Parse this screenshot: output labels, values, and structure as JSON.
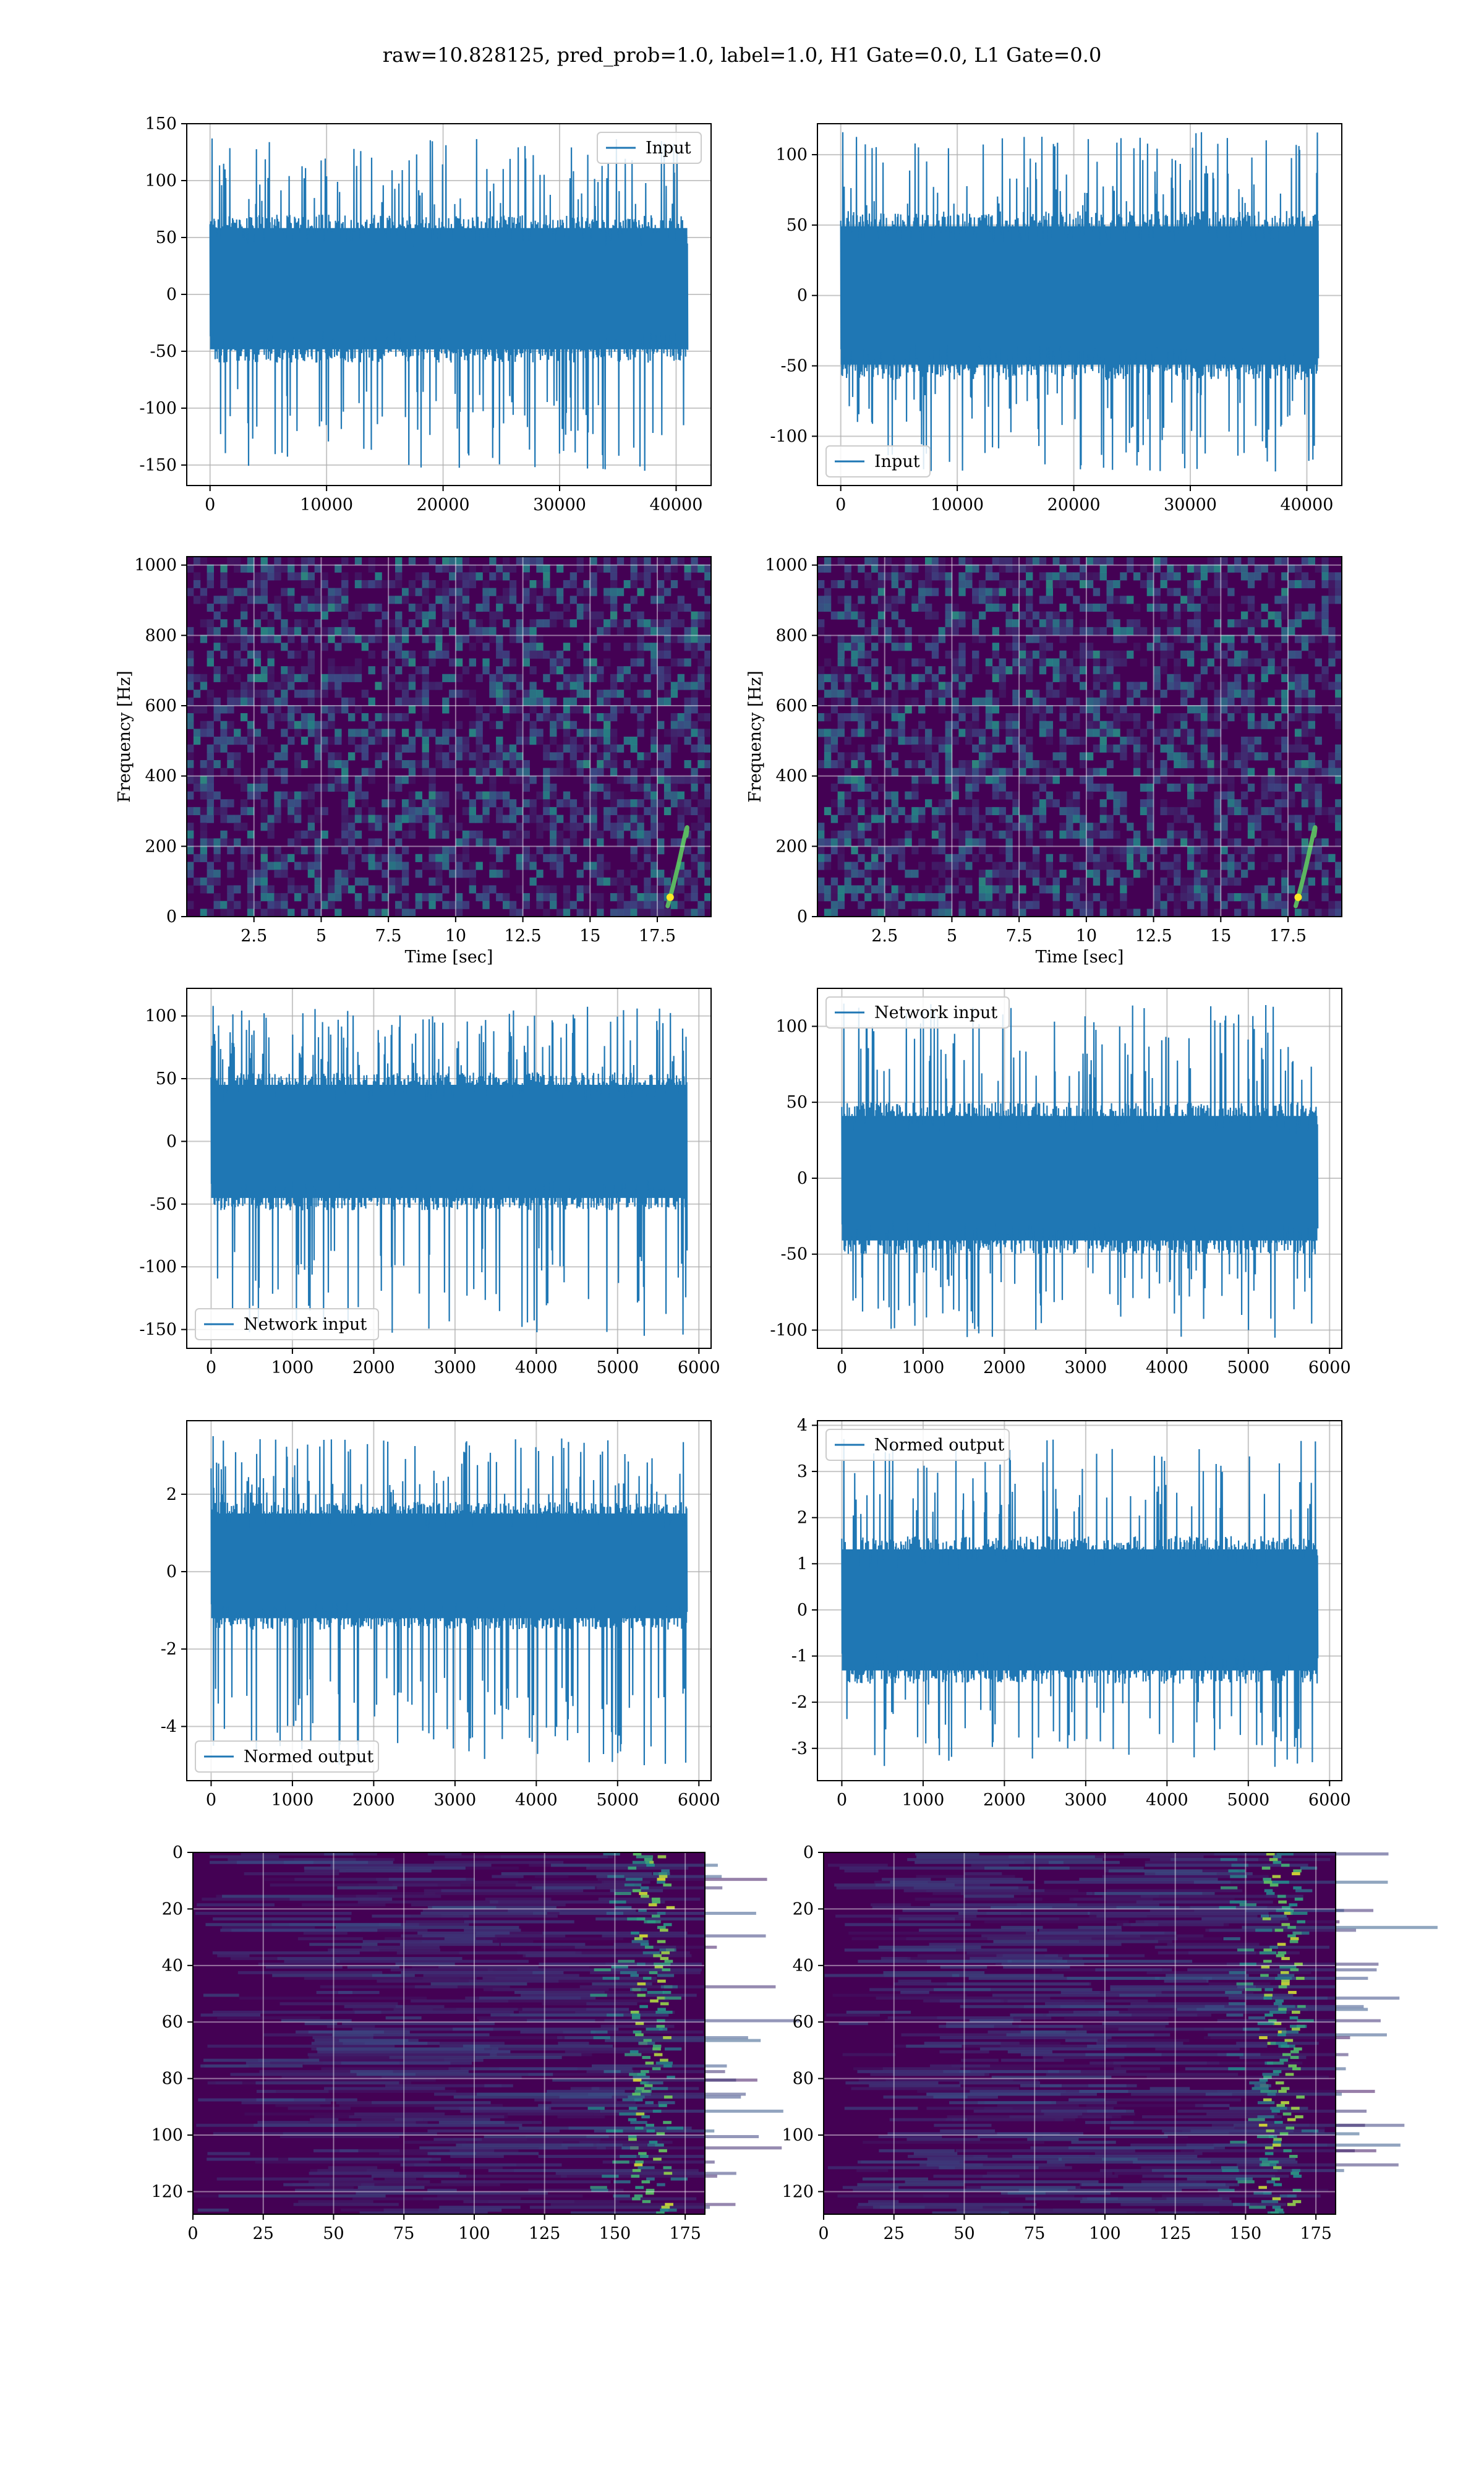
{
  "figure": {
    "title": "raw=10.828125, pred_prob=1.0, label=1.0, H1 Gate=0.0, L1 Gate=0.0"
  },
  "colors": {
    "line": "#1f77b4",
    "grid": "#b0b0b0",
    "viridis_low": "#440154",
    "viridis_mid": "#21918c",
    "viridis_high": "#fde725"
  },
  "chart_data": [
    {
      "id": "ts-left-input",
      "type": "line",
      "series": [
        {
          "name": "Input"
        }
      ],
      "legend": "upper right",
      "grid": true,
      "xlim": [
        -2000,
        43000
      ],
      "ylim": [
        -168,
        150
      ],
      "xticks": [
        0,
        10000,
        20000,
        30000,
        40000
      ],
      "yticks": [
        -150,
        -100,
        -50,
        0,
        50,
        100,
        150
      ],
      "n_points": 40960,
      "envelope": [
        -60,
        70
      ],
      "extremes": {
        "max": 137,
        "min": -155
      }
    },
    {
      "id": "ts-right-input",
      "type": "line",
      "series": [
        {
          "name": "Input"
        }
      ],
      "legend": "lower left",
      "grid": true,
      "xlim": [
        -2000,
        43000
      ],
      "ylim": [
        -135,
        122
      ],
      "xticks": [
        0,
        10000,
        20000,
        30000,
        40000
      ],
      "yticks": [
        -100,
        -50,
        0,
        50,
        100
      ],
      "n_points": 40960,
      "envelope": [
        -60,
        60
      ],
      "extremes": {
        "max": 116,
        "min": -125
      }
    },
    {
      "id": "spec-left",
      "type": "heatmap",
      "xlabel": "Time [sec]",
      "ylabel": "Frequency [Hz]",
      "xlim": [
        0,
        19.5
      ],
      "ylim": [
        0,
        1024
      ],
      "xticks": [
        2.5,
        5.0,
        7.5,
        10.0,
        12.5,
        15.0,
        17.5
      ],
      "yticks": [
        0,
        200,
        400,
        600,
        800,
        1000
      ],
      "grid": true,
      "colormap": "viridis",
      "chirp_time": 18.3
    },
    {
      "id": "spec-right",
      "type": "heatmap",
      "xlabel": "Time [sec]",
      "ylabel": "Frequency [Hz]",
      "xlim": [
        0,
        19.5
      ],
      "ylim": [
        0,
        1024
      ],
      "xticks": [
        2.5,
        5.0,
        7.5,
        10.0,
        12.5,
        15.0,
        17.5
      ],
      "yticks": [
        0,
        200,
        400,
        600,
        800,
        1000
      ],
      "grid": true,
      "colormap": "viridis",
      "chirp_time": 18.2
    },
    {
      "id": "ts-left-network",
      "type": "line",
      "series": [
        {
          "name": "Network input"
        }
      ],
      "legend": "lower left",
      "grid": true,
      "xlim": [
        -300,
        6150
      ],
      "ylim": [
        -165,
        122
      ],
      "xticks": [
        0,
        1000,
        2000,
        3000,
        4000,
        5000,
        6000
      ],
      "yticks": [
        -150,
        -100,
        -50,
        0,
        50,
        100
      ],
      "n_points": 5850,
      "envelope": [
        -55,
        55
      ],
      "extremes": {
        "max": 108,
        "min": -155
      }
    },
    {
      "id": "ts-right-network",
      "type": "line",
      "series": [
        {
          "name": "Network input"
        }
      ],
      "legend": "upper left",
      "grid": true,
      "xlim": [
        -300,
        6150
      ],
      "ylim": [
        -112,
        125
      ],
      "xticks": [
        0,
        1000,
        2000,
        3000,
        4000,
        5000,
        6000
      ],
      "yticks": [
        -100,
        -50,
        0,
        50,
        100
      ],
      "n_points": 5850,
      "envelope": [
        -50,
        50
      ],
      "extremes": {
        "max": 115,
        "min": -105
      }
    },
    {
      "id": "ts-left-normed",
      "type": "line",
      "series": [
        {
          "name": "Normed output"
        }
      ],
      "legend": "lower left",
      "grid": true,
      "xlim": [
        -300,
        6150
      ],
      "ylim": [
        -5.4,
        3.9
      ],
      "xticks": [
        0,
        1000,
        2000,
        3000,
        4000,
        5000,
        6000
      ],
      "yticks": [
        -4,
        -2,
        0,
        2
      ],
      "n_points": 5850,
      "envelope": [
        -1.5,
        1.8
      ],
      "extremes": {
        "max": 3.5,
        "min": -5.0
      }
    },
    {
      "id": "ts-right-normed",
      "type": "line",
      "series": [
        {
          "name": "Normed output"
        }
      ],
      "legend": "upper left",
      "grid": true,
      "xlim": [
        -300,
        6150
      ],
      "ylim": [
        -3.7,
        4.1
      ],
      "xticks": [
        0,
        1000,
        2000,
        3000,
        4000,
        5000,
        6000
      ],
      "yticks": [
        -3,
        -2,
        -1,
        0,
        1,
        2,
        3,
        4
      ],
      "n_points": 5850,
      "envelope": [
        -1.6,
        1.6
      ],
      "extremes": {
        "max": 3.7,
        "min": -3.4
      }
    },
    {
      "id": "img-left",
      "type": "heatmap",
      "xlim": [
        0,
        182
      ],
      "ylim": [
        128,
        0
      ],
      "xticks": [
        0,
        25,
        50,
        75,
        100,
        125,
        150,
        175
      ],
      "yticks": [
        0,
        20,
        40,
        60,
        80,
        100,
        120
      ],
      "grid": true,
      "colormap": "viridis",
      "hot_column": 163
    },
    {
      "id": "img-right",
      "type": "heatmap",
      "xlim": [
        0,
        182
      ],
      "ylim": [
        128,
        0
      ],
      "xticks": [
        0,
        25,
        50,
        75,
        100,
        125,
        150,
        175
      ],
      "yticks": [
        0,
        20,
        40,
        60,
        80,
        100,
        120
      ],
      "grid": true,
      "colormap": "viridis",
      "hot_column": 163
    }
  ]
}
